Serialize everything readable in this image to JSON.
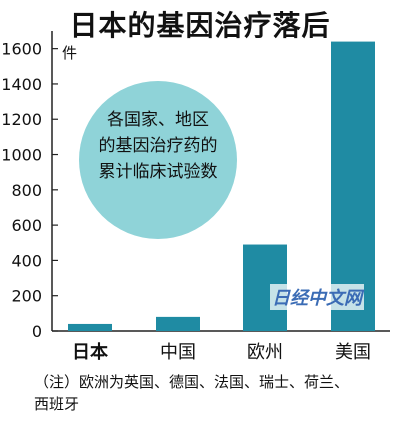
{
  "chart_data": {
    "type": "bar",
    "title": "日本的基因治疗落后",
    "unit_label": "件",
    "categories": [
      "日本",
      "中国",
      "欧州",
      "美国"
    ],
    "values": [
      40,
      80,
      490,
      1640
    ],
    "ylim": [
      0,
      1700
    ],
    "yticks": [
      0,
      200,
      400,
      600,
      800,
      1000,
      1200,
      1400,
      1600
    ],
    "bar_color": "#1f8ba3",
    "bubble_color": "#8fd3d8",
    "bubble_lines": [
      "各国家、地区",
      "的基因治疗药的",
      "累计临床试验数"
    ],
    "grid": false,
    "legend": "none"
  },
  "note_lines": [
    "（注）欧洲为英国、德国、法国、瑞士、荷兰、",
    "西班牙"
  ],
  "watermark": "日经中文网"
}
